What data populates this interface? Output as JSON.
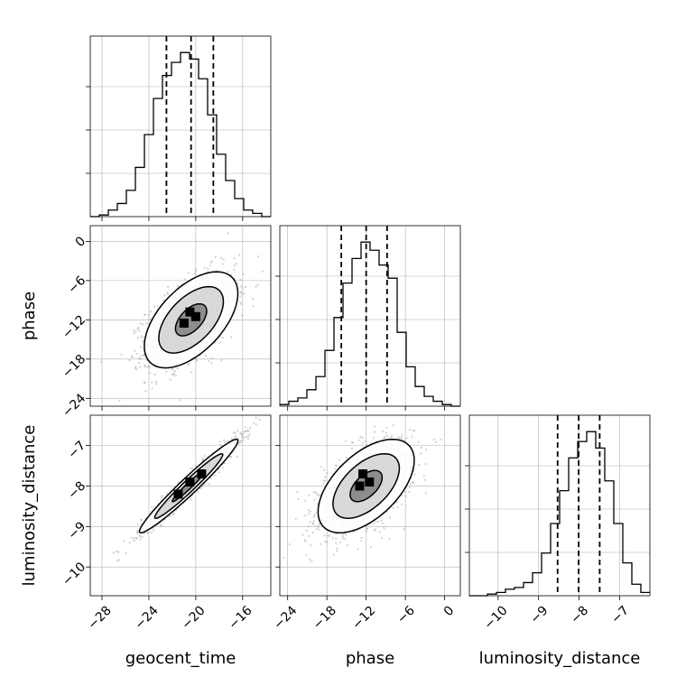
{
  "chart_data": {
    "type": "corner",
    "grid": true,
    "parameters": [
      "geocent_time",
      "phase",
      "luminosity_distance"
    ],
    "ranges": {
      "geocent_time": [
        -29.0,
        -13.6
      ],
      "phase": [
        -25.2,
        2.4
      ],
      "luminosity_distance": [
        -10.71,
        -6.25
      ]
    },
    "ticks": {
      "geocent_time": [
        "-28",
        "-24",
        "-20",
        "-16"
      ],
      "phase": [
        "-24",
        "-18",
        "-12",
        "-6",
        "0"
      ],
      "luminosity_distance": [
        "-10",
        "-9",
        "-8",
        "-7"
      ]
    },
    "tick_values": {
      "geocent_time": [
        -28,
        -24,
        -20,
        -16
      ],
      "phase": [
        -24,
        -18,
        -12,
        -6,
        0
      ],
      "luminosity_distance": [
        -10,
        -9,
        -8,
        -7
      ]
    },
    "quantiles": {
      "geocent_time": [
        -22.5,
        -20.4,
        -18.5
      ],
      "phase": [
        -15.8,
        -12.0,
        -8.8
      ],
      "luminosity_distance": [
        -8.53,
        -8.01,
        -7.49
      ]
    },
    "histograms": {
      "geocent_time": {
        "edges": [
          -29.0,
          -28.23,
          -27.46,
          -26.69,
          -25.92,
          -25.15,
          -24.38,
          -23.61,
          -22.84,
          -22.07,
          -21.3,
          -20.53,
          -19.76,
          -18.99,
          -18.22,
          -17.45,
          -16.68,
          -15.91,
          -15.14,
          -14.37,
          -13.6
        ],
        "counts": [
          0,
          1,
          4,
          8,
          16,
          30,
          50,
          72,
          86,
          94,
          100,
          96,
          84,
          62,
          38,
          22,
          11,
          4,
          2,
          0
        ]
      },
      "phase": {
        "edges": [
          -25.2,
          -23.82,
          -22.44,
          -21.06,
          -19.68,
          -18.3,
          -16.92,
          -15.54,
          -14.16,
          -12.78,
          -11.4,
          -10.02,
          -8.64,
          -7.26,
          -5.88,
          -4.5,
          -3.12,
          -1.74,
          -0.36,
          1.02,
          2.4
        ],
        "counts": [
          1,
          3,
          5,
          10,
          18,
          34,
          54,
          75,
          90,
          100,
          95,
          86,
          78,
          45,
          24,
          12,
          6,
          3,
          1,
          0
        ]
      },
      "luminosity_distance": {
        "edges": [
          -10.71,
          -10.487,
          -10.264,
          -10.041,
          -9.818,
          -9.595,
          -9.372,
          -9.149,
          -8.926,
          -8.703,
          -8.48,
          -8.257,
          -8.034,
          -7.811,
          -7.588,
          -7.365,
          -7.142,
          -6.919,
          -6.696,
          -6.473,
          -6.25
        ],
        "counts": [
          0,
          0,
          1,
          2,
          4,
          5,
          8,
          14,
          26,
          44,
          64,
          84,
          94,
          100,
          90,
          70,
          44,
          20,
          7,
          2
        ]
      }
    },
    "pairs": [
      {
        "x": "geocent_time",
        "y": "phase",
        "center": [
          -20.4,
          -12.0
        ],
        "sigma": [
          1.9,
          3.5
        ],
        "rho": 0.55,
        "contours": [
          0.7,
          1.45,
          2.1
        ],
        "dark_bins": [
          [
            -21.0,
            -12.5
          ],
          [
            -20.0,
            -11.5
          ],
          [
            -20.5,
            -10.8
          ]
        ]
      },
      {
        "x": "geocent_time",
        "y": "luminosity_distance",
        "center": [
          -20.6,
          -8.0
        ],
        "sigma": [
          2.0,
          0.55
        ],
        "rho": 0.97,
        "contours": [
          0.7,
          1.45,
          2.1
        ],
        "dark_bins": [
          [
            -21.5,
            -8.2
          ],
          [
            -20.5,
            -7.9
          ],
          [
            -19.5,
            -7.7
          ]
        ]
      },
      {
        "x": "phase",
        "y": "luminosity_distance",
        "center": [
          -12.0,
          -8.0
        ],
        "sigma": [
          3.5,
          0.55
        ],
        "rho": 0.55,
        "contours": [
          0.7,
          1.45,
          2.1
        ],
        "dark_bins": [
          [
            -13.0,
            -8.0
          ],
          [
            -11.5,
            -7.9
          ],
          [
            -12.5,
            -7.7
          ]
        ]
      }
    ]
  }
}
